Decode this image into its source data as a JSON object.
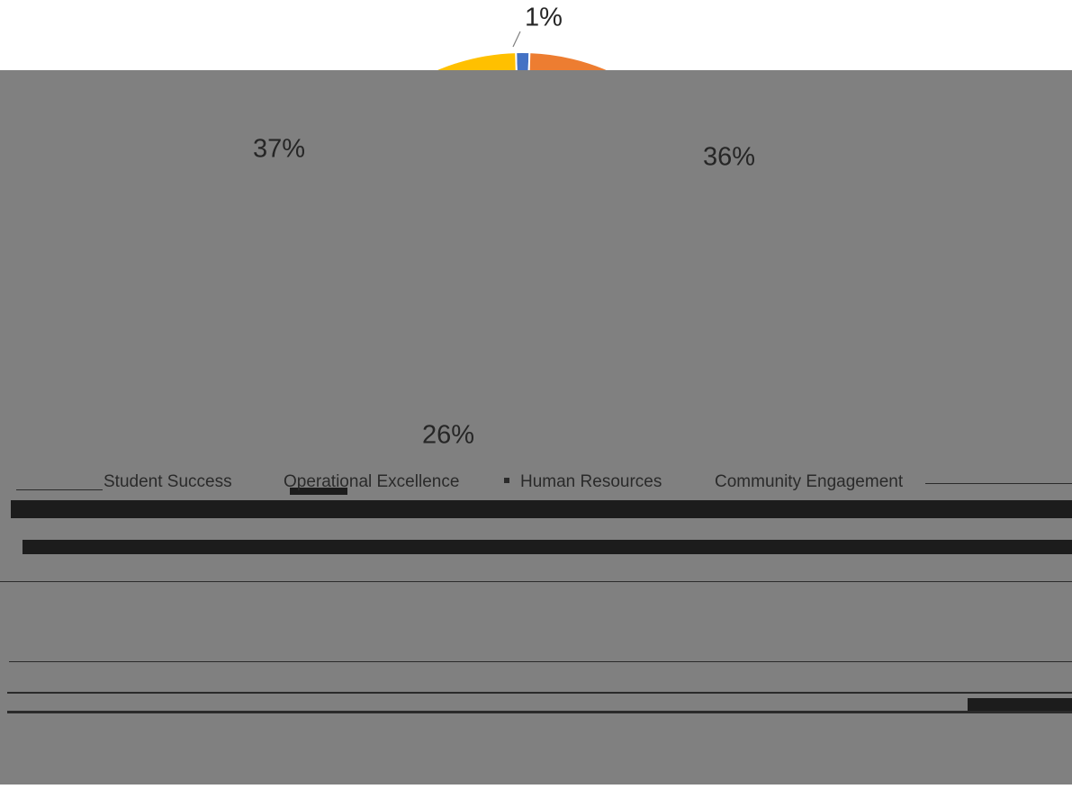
{
  "chart_data": {
    "type": "pie",
    "title": "",
    "series": [
      {
        "name": "Student Success",
        "value": 37,
        "label": "37%",
        "color": "#FFC000"
      },
      {
        "name": "Operational Excellence",
        "value": 36,
        "label": "36%",
        "color": "#ED7D31"
      },
      {
        "name": "Human Resources",
        "value": 26,
        "label": "26%",
        "color": "#A5A5A5"
      },
      {
        "name": "Community Engagement",
        "value": 1,
        "label": "1%",
        "color": "#4472C4"
      }
    ],
    "legend_position": "bottom"
  },
  "overlay_color": "#808080"
}
